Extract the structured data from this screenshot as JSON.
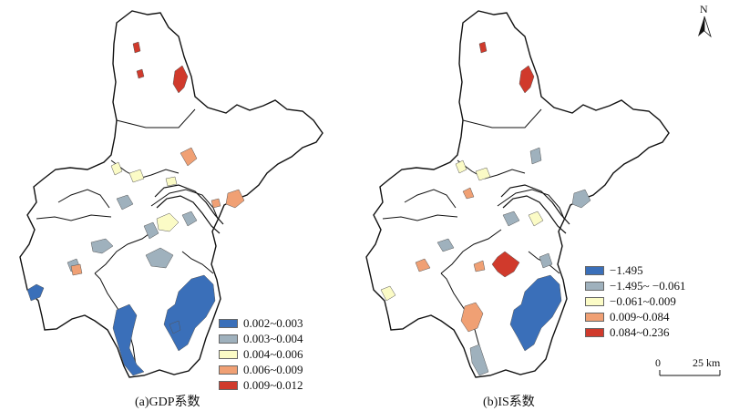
{
  "panels": [
    {
      "caption": "(a)GDP系数",
      "legend": [
        {
          "label": "0.002~0.003",
          "color": "#3a6fb9"
        },
        {
          "label": "0.003~0.004",
          "color": "#9fb1bd"
        },
        {
          "label": "0.004~0.006",
          "color": "#fbfbc6"
        },
        {
          "label": "0.006~0.009",
          "color": "#f0a074"
        },
        {
          "label": "0.009~0.012",
          "color": "#d03a2c"
        }
      ]
    },
    {
      "caption": "(b)IS系数",
      "legend": [
        {
          "label": "−1.495",
          "color": "#3a6fb9"
        },
        {
          "label": "−1.495~ −0.061",
          "color": "#9fb1bd"
        },
        {
          "label": "−0.061~0.009",
          "color": "#fbfbc6"
        },
        {
          "label": "0.009~0.084",
          "color": "#f0a074"
        },
        {
          "label": "0.084~0.236",
          "color": "#d03a2c"
        }
      ]
    }
  ],
  "north_arrow": {
    "label": "N"
  },
  "scale_bar": {
    "start": "0",
    "end": "25 km"
  }
}
